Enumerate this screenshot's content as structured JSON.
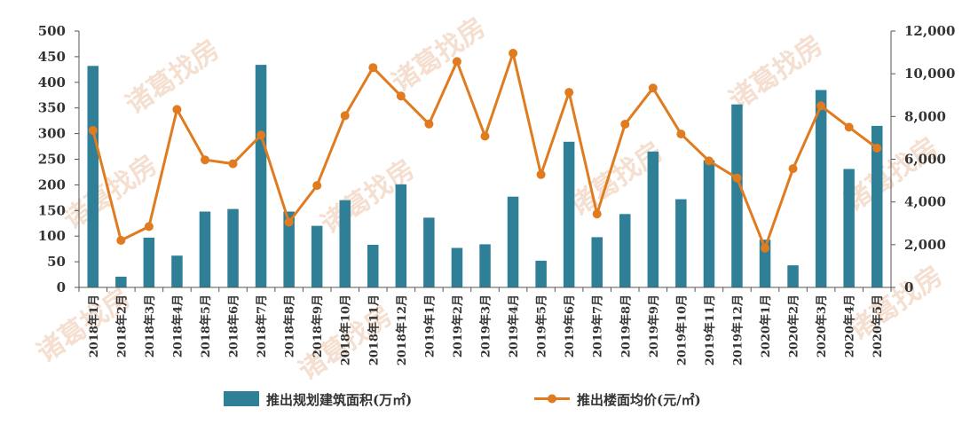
{
  "watermark": "诸葛找房",
  "colors": {
    "bar": "#2f7f97",
    "line": "#e07b1f",
    "axis": "#555555",
    "text": "#333333"
  },
  "chart_data": {
    "type": "bar+line",
    "title": "",
    "categories": [
      "2018年1月",
      "2018年2月",
      "2018年3月",
      "2018年4月",
      "2018年5月",
      "2018年6月",
      "2018年7月",
      "2018年8月",
      "2018年9月",
      "2018年10月",
      "2018年11月",
      "2018年12月",
      "2019年1月",
      "2019年2月",
      "2019年3月",
      "2019年4月",
      "2019年5月",
      "2019年6月",
      "2019年7月",
      "2019年8月",
      "2019年9月",
      "2019年10月",
      "2019年11月",
      "2019年12月",
      "2020年1月",
      "2020年2月",
      "2020年3月",
      "2020年4月",
      "2020年5月"
    ],
    "series": [
      {
        "name": "推出规划建筑面积(万㎡)",
        "type": "bar",
        "axis": "left",
        "values": [
          432,
          21,
          97,
          62,
          148,
          153,
          434,
          148,
          120,
          170,
          83,
          201,
          136,
          77,
          84,
          177,
          52,
          284,
          98,
          143,
          265,
          172,
          248,
          357,
          93,
          43,
          385,
          231,
          315
        ]
      },
      {
        "name": "推出楼面均价(元/㎡)",
        "type": "line",
        "axis": "right",
        "values": [
          7350,
          2200,
          2850,
          8330,
          5970,
          5790,
          7130,
          3050,
          4770,
          8040,
          10290,
          8960,
          7650,
          10570,
          7080,
          10960,
          5280,
          9130,
          3440,
          7640,
          9330,
          7180,
          5920,
          5120,
          1840,
          5560,
          8500,
          7500,
          6520
        ]
      }
    ],
    "y_left": {
      "ylim": [
        0,
        500
      ],
      "ticks": [
        "0",
        "50",
        "100",
        "150",
        "200",
        "250",
        "300",
        "350",
        "400",
        "450",
        "500"
      ]
    },
    "y_right": {
      "ylim": [
        0,
        12000
      ],
      "ticks": [
        "0",
        "2,000",
        "4,000",
        "6,000",
        "8,000",
        "10,000",
        "12,000"
      ]
    },
    "grid": false,
    "legend_position": "bottom"
  }
}
